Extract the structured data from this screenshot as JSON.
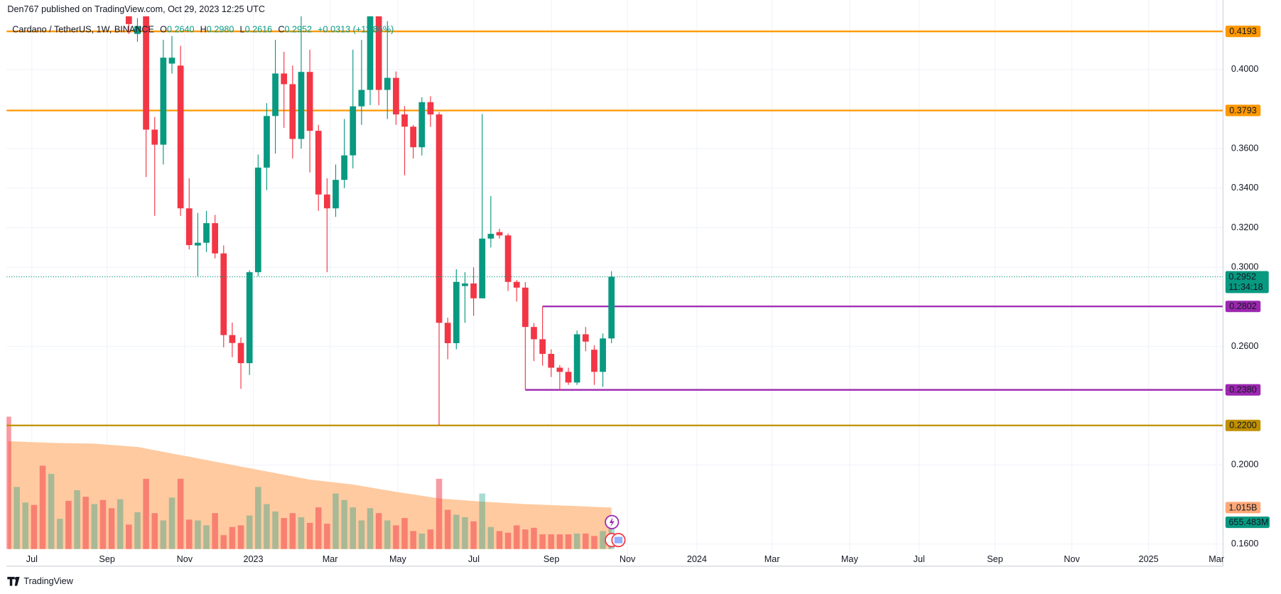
{
  "page": {
    "published": "Den767 published on TradingView.com, Oct 29, 2023 12:25 UTC",
    "symbol": "Cardano / TetherUS, 1W, BINANCE",
    "ohlc": [
      {
        "key": "O",
        "value": "0.2640"
      },
      {
        "key": "H",
        "value": "0.2980"
      },
      {
        "key": "L",
        "value": "0.2616"
      },
      {
        "key": "C",
        "value": "0.2952"
      }
    ],
    "change": "+0.0313 (+11.86%)",
    "footer": "TradingView"
  },
  "chart_data": {
    "type": "candlestick",
    "x": [
      0,
      1,
      2,
      3,
      4,
      5,
      6,
      7,
      8,
      9,
      10,
      11,
      12,
      13,
      14,
      15,
      16,
      17,
      18,
      19,
      20,
      21,
      22,
      23,
      24,
      25,
      26,
      27,
      28,
      29,
      30,
      31,
      32,
      33,
      34,
      35,
      36,
      37,
      38,
      39,
      40,
      41,
      42,
      43,
      44,
      45,
      46,
      47,
      48,
      49,
      50,
      51,
      52,
      53,
      54,
      55,
      56,
      57,
      58,
      59,
      60,
      61,
      62,
      63,
      64,
      65,
      66,
      67,
      68,
      69,
      70
    ],
    "open": [
      null,
      null,
      null,
      null,
      null,
      null,
      null,
      null,
      null,
      null,
      null,
      null,
      null,
      null,
      0.432,
      0.418,
      0.428,
      0.3696,
      0.362,
      0.403,
      0.402,
      0.3298,
      0.311,
      0.3124,
      0.3223,
      0.307,
      0.2657,
      0.2617,
      0.2515,
      0.2975,
      0.3504,
      0.3765,
      0.398,
      0.3926,
      0.3649,
      0.3988,
      0.369,
      0.3368,
      0.3298,
      0.3442,
      0.3566,
      0.3814,
      0.3897,
      0.432,
      0.3897,
      0.3958,
      0.3773,
      0.3711,
      0.3607,
      0.3835,
      0.3773,
      0.2719,
      0.2616,
      0.2905,
      0.2918,
      0.2843,
      0.3145,
      0.3178,
      0.3161,
      0.2926,
      0.2897,
      0.2698,
      0.2636,
      0.2562,
      0.2492,
      0.2471,
      0.2417,
      0.2661,
      0.2583,
      0.2471,
      0.264
    ],
    "high": [
      null,
      null,
      null,
      null,
      null,
      null,
      null,
      null,
      null,
      null,
      null,
      null,
      null,
      null,
      0.44,
      0.426,
      0.432,
      0.376,
      0.415,
      0.417,
      0.412,
      0.345,
      0.3275,
      0.3285,
      0.3265,
      0.311,
      0.272,
      0.2645,
      0.2985,
      0.357,
      0.383,
      0.415,
      0.409,
      0.402,
      0.43,
      0.41,
      0.372,
      0.345,
      0.352,
      0.375,
      0.41,
      0.415,
      0.45,
      0.438,
      0.4245,
      0.399,
      0.3815,
      0.372,
      0.386,
      0.3865,
      0.3785,
      0.2745,
      0.299,
      0.2975,
      0.3,
      0.3775,
      0.336,
      0.3195,
      0.3171,
      0.2935,
      0.2925,
      0.2718,
      0.2802,
      0.2585,
      0.2505,
      0.2492,
      0.268,
      0.2698,
      0.2605,
      0.2665,
      0.298
    ],
    "low": [
      null,
      null,
      null,
      null,
      null,
      null,
      null,
      null,
      null,
      null,
      null,
      null,
      null,
      null,
      0.418,
      0.414,
      0.3456,
      0.326,
      0.352,
      0.398,
      0.326,
      0.309,
      0.2955,
      0.3077,
      0.3045,
      0.2595,
      0.2545,
      0.2385,
      0.2455,
      0.2955,
      0.339,
      0.3575,
      0.3705,
      0.355,
      0.36,
      0.348,
      0.3285,
      0.2975,
      0.3255,
      0.34,
      0.35,
      0.372,
      0.382,
      0.382,
      0.375,
      0.372,
      0.3465,
      0.355,
      0.3565,
      0.371,
      0.22,
      0.2535,
      0.2585,
      0.2719,
      0.2755,
      0.2843,
      0.31,
      0.3145,
      0.288,
      0.2826,
      0.238,
      0.2525,
      0.2502,
      0.2445,
      0.2376,
      0.2405,
      0.2405,
      0.2575,
      0.2405,
      0.2395,
      0.2616
    ],
    "close": [
      null,
      null,
      null,
      null,
      null,
      null,
      null,
      null,
      null,
      null,
      null,
      null,
      null,
      null,
      0.423,
      0.422,
      0.3696,
      0.362,
      0.406,
      0.406,
      0.3298,
      0.3112,
      0.3124,
      0.3223,
      0.307,
      0.2657,
      0.2617,
      0.2515,
      0.2975,
      0.3504,
      0.3765,
      0.398,
      0.3926,
      0.3649,
      0.3988,
      0.369,
      0.3368,
      0.3298,
      0.3442,
      0.3566,
      0.3814,
      0.3897,
      0.432,
      0.3897,
      0.3958,
      0.3773,
      0.3711,
      0.3607,
      0.3835,
      0.3773,
      0.2719,
      0.2616,
      0.2926,
      0.2918,
      0.2843,
      0.3145,
      0.3169,
      0.3161,
      0.2926,
      0.2897,
      0.2698,
      0.2636,
      0.2562,
      0.2492,
      0.2471,
      0.2417,
      0.2661,
      0.2624,
      0.2471,
      0.264,
      0.2952
    ],
    "up_color": "#089981",
    "down_color": "#f23645",
    "volume": [
      3240,
      1520,
      1140,
      1080,
      2040,
      1840,
      740,
      1180,
      1440,
      1280,
      1100,
      1200,
      1000,
      1220,
      600,
      900,
      1720,
      880,
      700,
      1260,
      1720,
      720,
      700,
      580,
      880,
      340,
      540,
      580,
      820,
      1520,
      1100,
      920,
      760,
      880,
      780,
      640,
      1020,
      620,
      1360,
      1200,
      1020,
      700,
      1000,
      880,
      700,
      580,
      760,
      440,
      380,
      480,
      1720,
      960,
      840,
      780,
      680,
      1360,
      540,
      440,
      400,
      580,
      480,
      520,
      360,
      360,
      360,
      360,
      380,
      380,
      320,
      440,
      655.483
    ],
    "volume_labels": [
      null,
      null,
      null,
      null,
      null,
      null,
      null,
      null,
      null,
      null,
      null,
      null,
      null,
      null,
      null,
      null,
      null,
      null,
      null,
      null,
      null,
      null,
      null,
      null,
      null,
      null,
      null,
      null,
      null,
      null,
      null,
      null,
      null,
      null,
      null,
      null,
      null,
      null,
      null,
      null,
      null,
      null,
      null,
      null,
      null,
      null,
      null,
      null,
      null,
      null,
      null,
      null,
      null,
      null,
      null,
      null,
      null,
      null,
      null,
      null,
      null,
      null,
      null,
      null,
      null,
      null,
      null,
      null,
      null,
      null,
      "655.483M"
    ],
    "volume_colors": [
      "#f2364580",
      "#08998159",
      "#08998159",
      "#f2364580",
      "#f2364580",
      "#08998159",
      "#08998159",
      "#f2364580",
      "#08998159",
      "#f2364580",
      "#08998159",
      "#f2364580",
      "#f2364580",
      "#08998159",
      "#f2364580",
      "#08998159",
      "#f2364580",
      "#f2364580",
      "#08998159",
      "#08998159",
      "#f2364580",
      "#f2364580",
      "#08998159",
      "#08998159",
      "#f2364580",
      "#f2364580",
      "#f2364580",
      "#f2364580",
      "#08998159",
      "#08998159",
      "#08998159",
      "#08998159",
      "#f2364580",
      "#f2364580",
      "#08998159",
      "#f2364580",
      "#f2364580",
      "#f2364580",
      "#08998159",
      "#08998159",
      "#08998159",
      "#08998159",
      "#08998159",
      "#f2364580",
      "#08998159",
      "#f2364580",
      "#f2364580",
      "#f2364580",
      "#08998159",
      "#f2364580",
      "#f2364580",
      "#f2364580",
      "#08998159",
      "#08998159",
      "#f2364580",
      "#08998159",
      "#08998159",
      "#f2364580",
      "#f2364580",
      "#f2364580",
      "#f2364580",
      "#f2364580",
      "#f2364580",
      "#f2364580",
      "#f2364580",
      "#f2364580",
      "#08998159",
      "#f2364580",
      "#f2364580",
      "#08998159",
      "#08998159"
    ],
    "volume_label_color": "#089981",
    "volume_ma": [
      2640,
      2632,
      2624,
      2616,
      2608,
      2600,
      2596,
      2592,
      2588,
      2584,
      2580,
      2564,
      2548,
      2532,
      2516,
      2500,
      2460,
      2420,
      2380,
      2340,
      2300,
      2260,
      2220,
      2180,
      2140,
      2100,
      2060,
      2020,
      1980,
      1940,
      1900,
      1860,
      1820,
      1780,
      1740,
      1700,
      1676,
      1652,
      1628,
      1604,
      1580,
      1544,
      1508,
      1472,
      1436,
      1400,
      1368,
      1336,
      1304,
      1272,
      1240,
      1224,
      1208,
      1192,
      1176,
      1160,
      1148,
      1136,
      1124,
      1112,
      1100,
      1092,
      1084,
      1076,
      1068,
      1060,
      1051,
      1042,
      1033,
      1024,
      1015
    ],
    "volume_ma_labels": [
      null,
      null,
      null,
      null,
      null,
      null,
      null,
      null,
      null,
      null,
      null,
      null,
      null,
      null,
      null,
      null,
      null,
      null,
      null,
      null,
      null,
      null,
      null,
      null,
      null,
      null,
      null,
      null,
      null,
      null,
      null,
      null,
      null,
      null,
      null,
      null,
      null,
      null,
      null,
      null,
      null,
      null,
      null,
      null,
      null,
      null,
      null,
      null,
      null,
      null,
      null,
      null,
      null,
      null,
      null,
      null,
      null,
      null,
      null,
      null,
      null,
      null,
      null,
      null,
      null,
      null,
      null,
      null,
      null,
      null,
      "1.015B"
    ],
    "volume_ma_color": "#ffcaa0",
    "volume_ma_label_color": "#ffa878",
    "xlim": [
      -0.19,
      140.95
    ],
    "xticks": [
      {
        "value": 2.75,
        "label": "Jul"
      },
      {
        "value": 11.47,
        "label": "Sep"
      },
      {
        "value": 20.47,
        "label": "Nov"
      },
      {
        "value": 28.44,
        "label": "2023"
      },
      {
        "value": 37.35,
        "label": "Mar"
      },
      {
        "value": 45.21,
        "label": "May"
      },
      {
        "value": 54.03,
        "label": "Jul"
      },
      {
        "value": 63.03,
        "label": "Sep"
      },
      {
        "value": 71.85,
        "label": "Nov"
      },
      {
        "value": 79.91,
        "label": "2024"
      },
      {
        "value": 88.63,
        "label": "Mar"
      },
      {
        "value": 97.63,
        "label": "May"
      },
      {
        "value": 105.69,
        "label": "Jul"
      },
      {
        "value": 114.5,
        "label": "Sep"
      },
      {
        "value": 123.41,
        "label": "Nov"
      },
      {
        "value": 132.32,
        "label": "2025"
      },
      {
        "value": 140.19,
        "label": "Mar"
      }
    ],
    "ylim": [
      0.1488,
      0.4269
    ],
    "yticks": [
      {
        "value": 0.4,
        "label": "0.4000"
      },
      {
        "value": 0.36,
        "label": "0.3600"
      },
      {
        "value": 0.34,
        "label": "0.3400"
      },
      {
        "value": 0.32,
        "label": "0.3200"
      },
      {
        "value": 0.3,
        "label": "0.3000"
      },
      {
        "value": 0.26,
        "label": "0.2600"
      },
      {
        "value": 0.2,
        "label": "0.2000"
      },
      {
        "value": 0.16,
        "label": "0.1600"
      }
    ],
    "grid": true,
    "levels": [
      {
        "value": 0.4193,
        "label": "0.4193",
        "color": "#ff9800",
        "text_color": "#131722"
      },
      {
        "value": 0.3793,
        "label": "0.3793",
        "color": "#ff9800",
        "text_color": "#131722"
      },
      {
        "value": 0.2802,
        "label": "0.2802",
        "color": "#9c27b0",
        "text_color": "#ffffff",
        "from": 62
      },
      {
        "value": 0.238,
        "label": "0.2380",
        "color": "#9c27b0",
        "text_color": "#ffffff",
        "from": 60
      },
      {
        "value": 0.22,
        "label": "0.2200",
        "color": "#bf9000",
        "text_color": "#ffffff"
      }
    ],
    "last_price": {
      "value": 0.2952,
      "label": "0.2952",
      "countdown": "11:34:18",
      "color": "#089981"
    }
  }
}
